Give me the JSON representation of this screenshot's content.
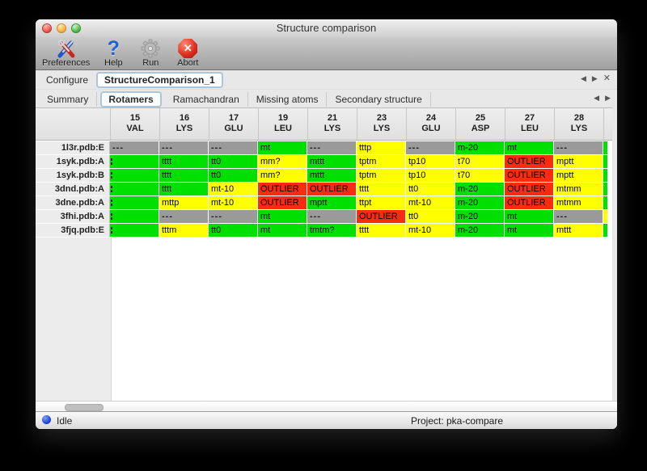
{
  "window": {
    "title": "Structure comparison"
  },
  "titlebar_buttons": [
    "close",
    "minimize",
    "zoom"
  ],
  "toolbar": {
    "items": [
      {
        "label": "Preferences",
        "icon": "tools-icon"
      },
      {
        "label": "Help",
        "icon": "question-mark-icon",
        "glyph": "?"
      },
      {
        "label": "Run",
        "icon": "gear-icon"
      },
      {
        "label": "Abort",
        "icon": "stop-x-icon",
        "glyph": "✕"
      }
    ]
  },
  "configure": {
    "label": "Configure",
    "selected_tab": "StructureComparison_1",
    "nav": {
      "left": "◀",
      "right": "▶",
      "close": "✕"
    }
  },
  "subtabs": {
    "items": [
      {
        "label": "Summary",
        "selected": false
      },
      {
        "label": "Rotamers",
        "selected": true
      },
      {
        "label": "Ramachandran",
        "selected": false
      },
      {
        "label": "Missing atoms",
        "selected": false
      },
      {
        "label": "Secondary structure",
        "selected": false
      }
    ],
    "nav": {
      "left": "◀",
      "right": "▶"
    }
  },
  "colors": {
    "green": "#00e000",
    "yellow": "#ffff00",
    "red": "#f92c12",
    "gray": "#9a9a9a"
  },
  "table": {
    "columns": [
      {
        "num": "15",
        "res": "VAL"
      },
      {
        "num": "16",
        "res": "LYS"
      },
      {
        "num": "17",
        "res": "GLU"
      },
      {
        "num": "19",
        "res": "LEU"
      },
      {
        "num": "21",
        "res": "LYS"
      },
      {
        "num": "23",
        "res": "LYS"
      },
      {
        "num": "24",
        "res": "GLU"
      },
      {
        "num": "25",
        "res": "ASP"
      },
      {
        "num": "27",
        "res": "LEU"
      },
      {
        "num": "28",
        "res": "LYS"
      }
    ],
    "rows": [
      {
        "label": "1l3r.pdb:E",
        "cells": [
          {
            "text": "---",
            "color": "gray"
          },
          {
            "text": "---",
            "color": "gray"
          },
          {
            "text": "---",
            "color": "gray"
          },
          {
            "text": "mt",
            "color": "green"
          },
          {
            "text": "---",
            "color": "gray"
          },
          {
            "text": "tttp",
            "color": "yellow"
          },
          {
            "text": "---",
            "color": "gray"
          },
          {
            "text": "m-20",
            "color": "green"
          },
          {
            "text": "mt",
            "color": "green"
          },
          {
            "text": "---",
            "color": "gray"
          }
        ],
        "overflow_color": "green"
      },
      {
        "label": "1syk.pdb:A",
        "cells": [
          {
            "text": "",
            "color": "green",
            "tick": true
          },
          {
            "text": "tttt",
            "color": "green"
          },
          {
            "text": "tt0",
            "color": "green"
          },
          {
            "text": "mm?",
            "color": "yellow"
          },
          {
            "text": "mttt",
            "color": "green"
          },
          {
            "text": "tptm",
            "color": "yellow"
          },
          {
            "text": "tp10",
            "color": "yellow"
          },
          {
            "text": "t70",
            "color": "yellow"
          },
          {
            "text": "OUTLIER",
            "color": "red"
          },
          {
            "text": "mptt",
            "color": "yellow"
          }
        ],
        "overflow_color": "green"
      },
      {
        "label": "1syk.pdb:B",
        "cells": [
          {
            "text": "",
            "color": "green",
            "tick": true
          },
          {
            "text": "tttt",
            "color": "green"
          },
          {
            "text": "tt0",
            "color": "green"
          },
          {
            "text": "mm?",
            "color": "yellow"
          },
          {
            "text": "mttt",
            "color": "green"
          },
          {
            "text": "tptm",
            "color": "yellow"
          },
          {
            "text": "tp10",
            "color": "yellow"
          },
          {
            "text": "t70",
            "color": "yellow"
          },
          {
            "text": "OUTLIER",
            "color": "red"
          },
          {
            "text": "mptt",
            "color": "yellow"
          }
        ],
        "overflow_color": "green"
      },
      {
        "label": "3dnd.pdb:A",
        "cells": [
          {
            "text": "",
            "color": "green",
            "tick": true
          },
          {
            "text": "tttt",
            "color": "green"
          },
          {
            "text": "mt-10",
            "color": "yellow"
          },
          {
            "text": "OUTLIER",
            "color": "red"
          },
          {
            "text": "OUTLIER",
            "color": "red"
          },
          {
            "text": "tttt",
            "color": "yellow"
          },
          {
            "text": "tt0",
            "color": "yellow"
          },
          {
            "text": "m-20",
            "color": "green"
          },
          {
            "text": "OUTLIER",
            "color": "red"
          },
          {
            "text": "mtmm",
            "color": "yellow"
          }
        ],
        "overflow_color": "green"
      },
      {
        "label": "3dne.pdb:A",
        "cells": [
          {
            "text": "",
            "color": "green",
            "tick": true
          },
          {
            "text": "mttp",
            "color": "yellow"
          },
          {
            "text": "mt-10",
            "color": "yellow"
          },
          {
            "text": "OUTLIER",
            "color": "red"
          },
          {
            "text": "mptt",
            "color": "green"
          },
          {
            "text": "ttpt",
            "color": "yellow"
          },
          {
            "text": "mt-10",
            "color": "yellow"
          },
          {
            "text": "m-20",
            "color": "green"
          },
          {
            "text": "OUTLIER",
            "color": "red"
          },
          {
            "text": "mtmm",
            "color": "yellow"
          }
        ],
        "overflow_color": "green"
      },
      {
        "label": "3fhi.pdb:A",
        "cells": [
          {
            "text": "",
            "color": "green",
            "tick": true
          },
          {
            "text": "---",
            "color": "gray"
          },
          {
            "text": "---",
            "color": "gray"
          },
          {
            "text": "mt",
            "color": "green"
          },
          {
            "text": "---",
            "color": "gray"
          },
          {
            "text": "OUTLIER",
            "color": "red"
          },
          {
            "text": "tt0",
            "color": "yellow"
          },
          {
            "text": "m-20",
            "color": "green"
          },
          {
            "text": "mt",
            "color": "green"
          },
          {
            "text": "---",
            "color": "gray"
          }
        ],
        "overflow_color": "yellow"
      },
      {
        "label": "3fjq.pdb:E",
        "cells": [
          {
            "text": "",
            "color": "green",
            "tick": true
          },
          {
            "text": "tttm",
            "color": "yellow"
          },
          {
            "text": "tt0",
            "color": "green"
          },
          {
            "text": "mt",
            "color": "green"
          },
          {
            "text": "tmtm?",
            "color": "green"
          },
          {
            "text": "tttt",
            "color": "yellow"
          },
          {
            "text": "mt-10",
            "color": "yellow"
          },
          {
            "text": "m-20",
            "color": "green"
          },
          {
            "text": "mt",
            "color": "green"
          },
          {
            "text": "mttt",
            "color": "yellow"
          }
        ],
        "overflow_color": "green"
      }
    ]
  },
  "statusbar": {
    "status": "Idle",
    "project": "Project: pka-compare"
  }
}
